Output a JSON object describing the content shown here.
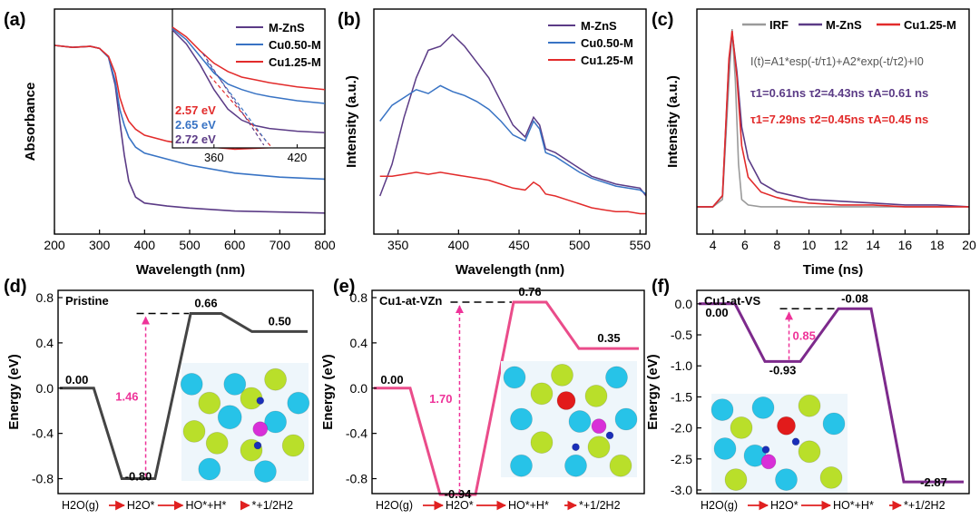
{
  "colors": {
    "mzns": "#5b3b86",
    "cu050": "#3873c4",
    "cu125": "#e22b2b",
    "irf": "#9a9a9a",
    "pristine": "#444444",
    "vzn": "#ea4c8a",
    "vs": "#7d2a8c",
    "gap": "#ee3399",
    "arrow": "#e02020"
  },
  "chart_data": [
    {
      "panel": "(a)",
      "type": "line",
      "title": "",
      "xlabel": "Wavelength (nm)",
      "ylabel": "Absorbance",
      "xlim": [
        200,
        800
      ],
      "ylim": [
        0,
        1
      ],
      "xticks": [
        "200",
        "300",
        "400",
        "500",
        "600",
        "700",
        "800"
      ],
      "legend": [
        "M-ZnS",
        "Cu0.50-M",
        "Cu1.25-M"
      ],
      "series": [
        {
          "name": "M-ZnS",
          "x": [
            200,
            240,
            280,
            300,
            320,
            335,
            345,
            355,
            365,
            380,
            400,
            450,
            500,
            600,
            700,
            800
          ],
          "y": [
            0.9,
            0.89,
            0.895,
            0.885,
            0.84,
            0.7,
            0.52,
            0.35,
            0.22,
            0.14,
            0.11,
            0.095,
            0.085,
            0.07,
            0.065,
            0.06
          ]
        },
        {
          "name": "Cu0.50-M",
          "x": [
            200,
            240,
            280,
            300,
            320,
            335,
            345,
            355,
            365,
            380,
            400,
            450,
            500,
            600,
            700,
            800
          ],
          "y": [
            0.9,
            0.89,
            0.895,
            0.885,
            0.84,
            0.72,
            0.58,
            0.5,
            0.44,
            0.39,
            0.36,
            0.33,
            0.3,
            0.26,
            0.24,
            0.23
          ]
        },
        {
          "name": "Cu1.25-M",
          "x": [
            200,
            240,
            280,
            300,
            320,
            335,
            345,
            355,
            365,
            380,
            400,
            450,
            500,
            600,
            700,
            800
          ],
          "y": [
            0.9,
            0.89,
            0.895,
            0.885,
            0.845,
            0.76,
            0.64,
            0.57,
            0.52,
            0.48,
            0.45,
            0.42,
            0.4,
            0.38,
            0.39,
            0.4
          ]
        }
      ],
      "inset": {
        "xticks": [
          "360",
          "420"
        ],
        "annotations": [
          "2.57 eV",
          "2.65 eV",
          "2.72 eV"
        ]
      }
    },
    {
      "panel": "(b)",
      "type": "line",
      "xlabel": "Wavelength (nm)",
      "ylabel": "Intensity (a.u.)",
      "xlim": [
        330,
        555
      ],
      "ylim": [
        0,
        1
      ],
      "xticks": [
        "350",
        "400",
        "450",
        "500",
        "550"
      ],
      "legend": [
        "M-ZnS",
        "Cu0.50-M",
        "Cu1.25-M"
      ],
      "series": [
        {
          "name": "M-ZnS",
          "x": [
            335,
            345,
            355,
            365,
            375,
            385,
            395,
            405,
            415,
            425,
            435,
            445,
            455,
            462,
            467,
            472,
            480,
            490,
            500,
            510,
            520,
            530,
            540,
            550,
            555
          ],
          "y": [
            0.12,
            0.28,
            0.52,
            0.72,
            0.86,
            0.88,
            0.94,
            0.88,
            0.8,
            0.72,
            0.6,
            0.48,
            0.42,
            0.52,
            0.48,
            0.36,
            0.34,
            0.3,
            0.26,
            0.22,
            0.2,
            0.18,
            0.17,
            0.16,
            0.12
          ]
        },
        {
          "name": "Cu0.50-M",
          "x": [
            335,
            345,
            355,
            365,
            375,
            385,
            395,
            405,
            415,
            425,
            435,
            445,
            455,
            462,
            467,
            472,
            480,
            490,
            500,
            510,
            520,
            530,
            540,
            550,
            555
          ],
          "y": [
            0.5,
            0.58,
            0.62,
            0.66,
            0.64,
            0.68,
            0.65,
            0.63,
            0.6,
            0.56,
            0.5,
            0.43,
            0.4,
            0.5,
            0.46,
            0.34,
            0.32,
            0.28,
            0.24,
            0.21,
            0.19,
            0.17,
            0.16,
            0.15,
            0.13
          ]
        },
        {
          "name": "Cu1.25-M",
          "x": [
            335,
            345,
            355,
            365,
            375,
            385,
            395,
            405,
            415,
            425,
            435,
            445,
            455,
            462,
            467,
            472,
            480,
            490,
            500,
            510,
            520,
            530,
            540,
            550,
            555
          ],
          "y": [
            0.22,
            0.22,
            0.23,
            0.24,
            0.23,
            0.24,
            0.23,
            0.22,
            0.21,
            0.2,
            0.18,
            0.16,
            0.15,
            0.19,
            0.17,
            0.13,
            0.12,
            0.1,
            0.08,
            0.06,
            0.05,
            0.04,
            0.04,
            0.03,
            0.03
          ]
        }
      ]
    },
    {
      "panel": "(c)",
      "type": "line",
      "xlabel": "Time (ns)",
      "ylabel": "Intensity (a.u.)",
      "xlim": [
        3,
        20
      ],
      "ylim": [
        0,
        1
      ],
      "xticks": [
        "4",
        "6",
        "8",
        "10",
        "12",
        "14",
        "16",
        "18",
        "20"
      ],
      "legend": [
        "IRF",
        "M-ZnS",
        "Cu1.25-M"
      ],
      "equation": "I(t)=A1*esp(-t/τ1)+A2*exp(-t/τ2)+I0",
      "annotations": [
        "τ1=0.61ns  τ2=4.43ns   τA=0.61 ns",
        "τ1=7.29ns  τ2=0.45ns   τA=0.45 ns"
      ],
      "series": [
        {
          "name": "IRF",
          "x": [
            3,
            4,
            4.6,
            5.0,
            5.2,
            5.4,
            5.6,
            5.8,
            6.2,
            7,
            9,
            12,
            16,
            20
          ],
          "y": [
            0.02,
            0.02,
            0.06,
            0.7,
            0.98,
            0.7,
            0.25,
            0.06,
            0.03,
            0.02,
            0.02,
            0.02,
            0.02,
            0.02
          ]
        },
        {
          "name": "M-ZnS",
          "x": [
            3,
            4,
            4.6,
            5.0,
            5.2,
            5.5,
            5.8,
            6.2,
            7,
            8,
            9,
            10,
            12,
            14,
            16,
            18,
            20
          ],
          "y": [
            0.02,
            0.02,
            0.08,
            0.8,
            0.96,
            0.75,
            0.45,
            0.28,
            0.15,
            0.1,
            0.08,
            0.06,
            0.05,
            0.04,
            0.03,
            0.03,
            0.02
          ]
        },
        {
          "name": "Cu1.25-M",
          "x": [
            3,
            4,
            4.6,
            5.0,
            5.2,
            5.5,
            5.8,
            6.2,
            7,
            8,
            9,
            10,
            12,
            14,
            16,
            18,
            20
          ],
          "y": [
            0.02,
            0.02,
            0.08,
            0.82,
            0.97,
            0.72,
            0.35,
            0.18,
            0.1,
            0.07,
            0.05,
            0.04,
            0.03,
            0.03,
            0.02,
            0.02,
            0.02
          ]
        }
      ]
    },
    {
      "panel": "(d)",
      "type": "line",
      "label": "Pristine",
      "ylabel": "Energy (eV)",
      "ylim": [
        -0.9,
        0.8
      ],
      "yticks": [
        "0.8",
        "0.4",
        "0.0",
        "-0.4",
        "-0.8"
      ],
      "steps": [
        "H2O(g)",
        "H2O*",
        "HO*+H*",
        "*+1/2H2"
      ],
      "values": [
        0.0,
        -0.8,
        0.66,
        0.5
      ],
      "value_labels": [
        "0.00",
        "-0.80",
        "0.66",
        "0.50"
      ],
      "gap": "1.46"
    },
    {
      "panel": "(e)",
      "type": "line",
      "label": "Cu1-at-VZn",
      "ylabel": "Energy (eV)",
      "ylim": [
        -0.9,
        0.8
      ],
      "yticks": [
        "0.8",
        "0.4",
        "0.0",
        "-0.4",
        "-0.8"
      ],
      "steps": [
        "H2O(g)",
        "H2O*",
        "HO*+H*",
        "*+1/2H2"
      ],
      "values": [
        0.0,
        -0.94,
        0.76,
        0.35
      ],
      "value_labels": [
        "0.00",
        "-0.94",
        "0.76",
        "0.35"
      ],
      "gap": "1.70"
    },
    {
      "panel": "(f)",
      "type": "line",
      "label": "Cu1-at-VS",
      "ylabel": "Energy (eV)",
      "ylim": [
        -3.0,
        0.1
      ],
      "yticks": [
        "0.0",
        "-0.5",
        "-1.0",
        "-1.5",
        "-2.0",
        "-2.5",
        "-3.0"
      ],
      "steps": [
        "H2O(g)",
        "H2O*",
        "HO*+H*",
        "*+1/2H2"
      ],
      "values": [
        0.0,
        -0.93,
        -0.08,
        -2.87
      ],
      "value_labels": [
        "0.00",
        "-0.93",
        "-0.08",
        "-2.87"
      ],
      "gap": "0.85"
    }
  ]
}
